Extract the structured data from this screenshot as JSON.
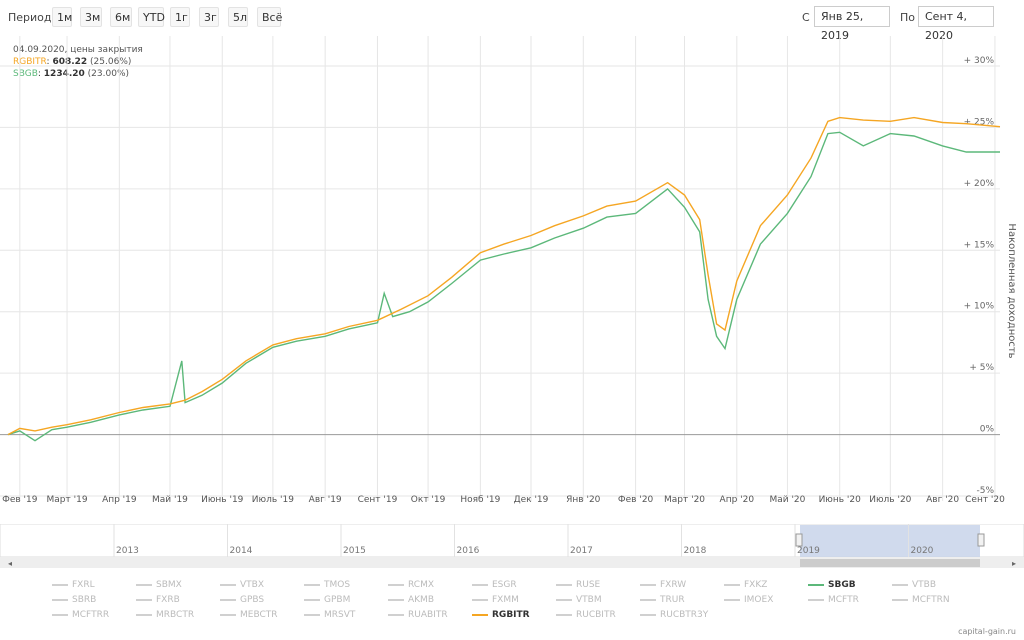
{
  "toolbar": {
    "period_label": "Период",
    "periods": [
      "1м",
      "3м",
      "6м",
      "YTD",
      "1г",
      "3г",
      "5л",
      "Всё"
    ],
    "from_label": "С",
    "from_value": "Янв 25, 2019",
    "to_label": "По",
    "to_value": "Сент 4, 2020"
  },
  "info": {
    "date_line": "04.09.2020, цены закрытия",
    "rows": [
      {
        "name": "RGBITR",
        "value": "608.22",
        "pct": "(25.06%)"
      },
      {
        "name": "SBGB",
        "value": "1234.20",
        "pct": "(23.00%)"
      }
    ]
  },
  "colors": {
    "rgbitr": "#f5a623",
    "sbgb": "#5cb87a",
    "navigator": "#c8d3ea"
  },
  "chart_data": {
    "type": "line",
    "ylabel": "Накопленная доходность",
    "ylim": [
      -5,
      30
    ],
    "yticks": [
      "-5%",
      "0%",
      "+ 5%",
      "+ 10%",
      "+ 15%",
      "+ 20%",
      "+ 25%",
      "+ 30%"
    ],
    "ytick_values": [
      -5,
      0,
      5,
      10,
      15,
      20,
      25,
      30
    ],
    "xticks": [
      "Фев '19",
      "Март '19",
      "Апр '19",
      "Май '19",
      "Июнь '19",
      "Июль '19",
      "Авг '19",
      "Сент '19",
      "Окт '19",
      "Нояб '19",
      "Дек '19",
      "Янв '20",
      "Фев '20",
      "Март '20",
      "Апр '20",
      "Май '20",
      "Июнь '20",
      "Июль '20",
      "Авг '20",
      "Сент '20"
    ],
    "xtick_dates": [
      "2019-02-01",
      "2019-03-01",
      "2019-04-01",
      "2019-05-01",
      "2019-06-01",
      "2019-07-01",
      "2019-08-01",
      "2019-09-01",
      "2019-10-01",
      "2019-11-01",
      "2019-12-01",
      "2020-01-01",
      "2020-02-01",
      "2020-03-01",
      "2020-04-01",
      "2020-05-01",
      "2020-06-01",
      "2020-07-01",
      "2020-08-01",
      "2020-09-01"
    ],
    "series": [
      {
        "name": "RGBITR",
        "points": [
          [
            "2019-01-25",
            0
          ],
          [
            "2019-02-01",
            0.5
          ],
          [
            "2019-02-10",
            0.3
          ],
          [
            "2019-02-20",
            0.6
          ],
          [
            "2019-03-01",
            0.8
          ],
          [
            "2019-03-15",
            1.2
          ],
          [
            "2019-04-01",
            1.8
          ],
          [
            "2019-04-15",
            2.2
          ],
          [
            "2019-05-01",
            2.5
          ],
          [
            "2019-05-10",
            2.8
          ],
          [
            "2019-05-20",
            3.5
          ],
          [
            "2019-06-01",
            4.5
          ],
          [
            "2019-06-15",
            6
          ],
          [
            "2019-07-01",
            7.3
          ],
          [
            "2019-07-15",
            7.8
          ],
          [
            "2019-08-01",
            8.2
          ],
          [
            "2019-08-15",
            8.8
          ],
          [
            "2019-09-01",
            9.3
          ],
          [
            "2019-09-15",
            10.2
          ],
          [
            "2019-10-01",
            11.3
          ],
          [
            "2019-10-15",
            12.8
          ],
          [
            "2019-11-01",
            14.8
          ],
          [
            "2019-11-15",
            15.5
          ],
          [
            "2019-12-01",
            16.2
          ],
          [
            "2019-12-15",
            17
          ],
          [
            "2020-01-01",
            17.8
          ],
          [
            "2020-01-15",
            18.6
          ],
          [
            "2020-02-01",
            19
          ],
          [
            "2020-02-20",
            20.5
          ],
          [
            "2020-03-01",
            19.5
          ],
          [
            "2020-03-10",
            17.5
          ],
          [
            "2020-03-15",
            13
          ],
          [
            "2020-03-20",
            9
          ],
          [
            "2020-03-25",
            8.5
          ],
          [
            "2020-04-01",
            12.5
          ],
          [
            "2020-04-15",
            17
          ],
          [
            "2020-05-01",
            19.5
          ],
          [
            "2020-05-15",
            22.5
          ],
          [
            "2020-05-25",
            25.5
          ],
          [
            "2020-06-01",
            25.8
          ],
          [
            "2020-06-15",
            25.6
          ],
          [
            "2020-07-01",
            25.5
          ],
          [
            "2020-07-15",
            25.8
          ],
          [
            "2020-08-01",
            25.4
          ],
          [
            "2020-08-15",
            25.3
          ],
          [
            "2020-09-04",
            25.06
          ]
        ]
      },
      {
        "name": "SBGB",
        "points": [
          [
            "2019-01-25",
            0
          ],
          [
            "2019-02-01",
            0.3
          ],
          [
            "2019-02-10",
            -0.5
          ],
          [
            "2019-02-20",
            0.4
          ],
          [
            "2019-03-01",
            0.6
          ],
          [
            "2019-03-15",
            1
          ],
          [
            "2019-04-01",
            1.6
          ],
          [
            "2019-04-15",
            2
          ],
          [
            "2019-05-01",
            2.3
          ],
          [
            "2019-05-08",
            6
          ],
          [
            "2019-05-10",
            2.6
          ],
          [
            "2019-05-20",
            3.2
          ],
          [
            "2019-06-01",
            4.2
          ],
          [
            "2019-06-15",
            5.8
          ],
          [
            "2019-07-01",
            7.1
          ],
          [
            "2019-07-15",
            7.6
          ],
          [
            "2019-08-01",
            8
          ],
          [
            "2019-08-15",
            8.6
          ],
          [
            "2019-09-01",
            9.1
          ],
          [
            "2019-09-05",
            11.5
          ],
          [
            "2019-09-10",
            9.6
          ],
          [
            "2019-09-20",
            10
          ],
          [
            "2019-10-01",
            10.8
          ],
          [
            "2019-10-15",
            12.3
          ],
          [
            "2019-11-01",
            14.2
          ],
          [
            "2019-11-15",
            14.7
          ],
          [
            "2019-12-01",
            15.2
          ],
          [
            "2019-12-15",
            16
          ],
          [
            "2020-01-01",
            16.8
          ],
          [
            "2020-01-15",
            17.7
          ],
          [
            "2020-02-01",
            18
          ],
          [
            "2020-02-20",
            20
          ],
          [
            "2020-03-01",
            18.5
          ],
          [
            "2020-03-10",
            16.5
          ],
          [
            "2020-03-15",
            11
          ],
          [
            "2020-03-20",
            8
          ],
          [
            "2020-03-25",
            7
          ],
          [
            "2020-04-01",
            11
          ],
          [
            "2020-04-15",
            15.5
          ],
          [
            "2020-05-01",
            18
          ],
          [
            "2020-05-15",
            21
          ],
          [
            "2020-05-25",
            24.5
          ],
          [
            "2020-06-01",
            24.6
          ],
          [
            "2020-06-15",
            23.5
          ],
          [
            "2020-07-01",
            24.5
          ],
          [
            "2020-07-15",
            24.3
          ],
          [
            "2020-08-01",
            23.5
          ],
          [
            "2020-08-15",
            23
          ],
          [
            "2020-09-04",
            23.0
          ]
        ]
      }
    ]
  },
  "navigator": {
    "years": [
      "2013",
      "2014",
      "2015",
      "2016",
      "2017",
      "2018",
      "2019",
      "2020"
    ]
  },
  "legend": {
    "items": [
      "FXRL",
      "SBMX",
      "VTBX",
      "TMOS",
      "RCMX",
      "ESGR",
      "RUSE",
      "FXRW",
      "FXKZ",
      "SBGB",
      "VTBB",
      "SBRB",
      "FXRB",
      "GPBS",
      "GPBM",
      "AKMB",
      "FXMM",
      "VTBM",
      "TRUR",
      "IMOEX",
      "MCFTR",
      "MCFTRN",
      "MCFTRR",
      "MRBCTR",
      "MEBCTR",
      "MRSVT",
      "RUABITR",
      "RGBITR",
      "RUCBITR",
      "RUCBTR3Y"
    ],
    "active": [
      "SBGB",
      "RGBITR"
    ]
  },
  "credit": "capital-gain.ru"
}
